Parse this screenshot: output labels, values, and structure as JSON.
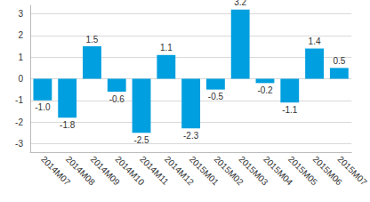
{
  "chart_data": {
    "type": "bar",
    "categories": [
      "2014M07",
      "2014M08",
      "2014M09",
      "2014M10",
      "2014M11",
      "2014M12",
      "2015M01",
      "2015M02",
      "2015M03",
      "2015M04",
      "2015M05",
      "2015M06",
      "2015M07"
    ],
    "values": [
      -1.0,
      -1.8,
      1.5,
      -0.6,
      -2.5,
      1.1,
      -2.3,
      -0.5,
      3.2,
      -0.2,
      -1.1,
      1.4,
      0.5
    ],
    "value_labels": [
      "-1.0",
      "-1.8",
      "1.5",
      "-0.6",
      "-2.5",
      "1.1",
      "-2.3",
      "-0.5",
      "3.2",
      "-0.2",
      "-1.1",
      "1.4",
      "0.5"
    ],
    "color": "#009fdf",
    "ylim": [
      -3.4,
      3.4
    ],
    "yticks": [
      -3,
      -2,
      -1,
      0,
      1,
      2,
      3
    ],
    "grid": true,
    "data_labels": true
  }
}
